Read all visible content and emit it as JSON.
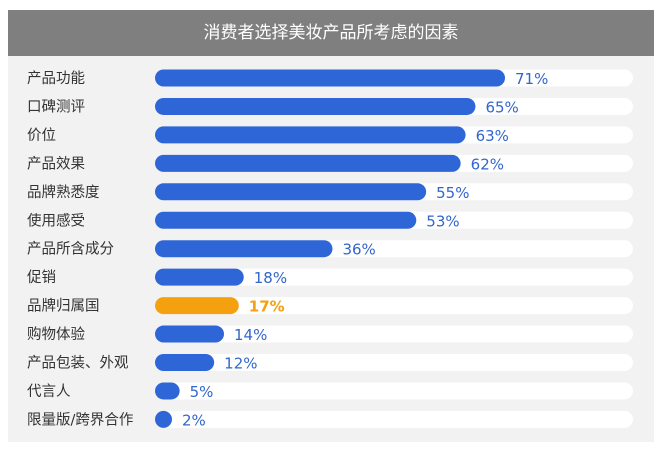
{
  "chart_data": {
    "type": "bar",
    "orientation": "horizontal",
    "title": "消费者选择美妆产品所考虑的因素",
    "categories": [
      "产品功能",
      "口碑测评",
      "价位",
      "产品效果",
      "品牌熟悉度",
      "使用感受",
      "产品所含成分",
      "促销",
      "品牌归属国",
      "购物体验",
      "产品包装、外观",
      "代言人",
      "限量版/跨界合作"
    ],
    "values": [
      71,
      65,
      63,
      62,
      55,
      53,
      36,
      18,
      17,
      14,
      12,
      5,
      2
    ],
    "value_labels": [
      "71%",
      "65%",
      "63%",
      "62%",
      "55%",
      "53%",
      "36%",
      "18%",
      "17%",
      "14%",
      "12%",
      "5%",
      "2%"
    ],
    "highlight_index": 8,
    "xlim": [
      0,
      100
    ],
    "grid": false,
    "colors": {
      "bar": "#2e66d8",
      "highlight": "#f5a00e",
      "track": "#ffffff",
      "value_text": "#3366cc",
      "title_bg": "#7f7f7f",
      "card_bg": "#f2f2f2"
    }
  }
}
